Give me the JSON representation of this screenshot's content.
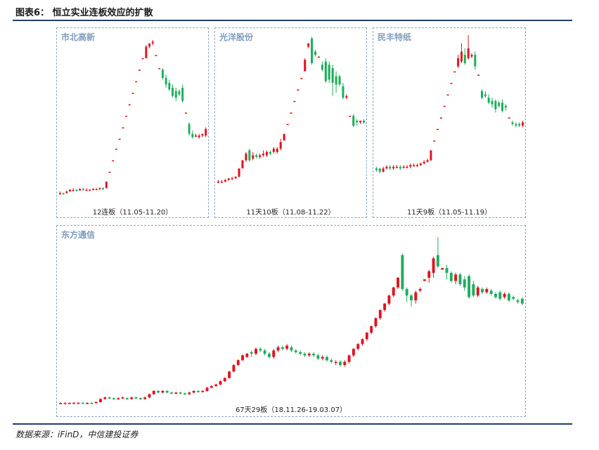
{
  "figure": {
    "title": "图表6： 恒立实业连板效应的扩散",
    "source": "数据来源：iFinD，中信建投证券"
  },
  "colors": {
    "up": "#e0141e",
    "down": "#1bae5b",
    "border": "#8aa6c4",
    "title_blue": "#7f9cbf",
    "rule": "#1f3f6d"
  },
  "chart_data": [
    {
      "type": "candlestick",
      "name": "市北高新",
      "caption": "12连板（11.05-11.20）",
      "ylim": [
        0,
        100
      ],
      "grid": false,
      "candles": [
        [
          4,
          4,
          5,
          3
        ],
        [
          4,
          3.5,
          4.2,
          3
        ],
        [
          4,
          5,
          5.5,
          3.8
        ],
        [
          5,
          6,
          6.5,
          4.8
        ],
        [
          6,
          6,
          7,
          5
        ],
        [
          6,
          5.5,
          6.5,
          5
        ],
        [
          5.5,
          6.5,
          7,
          5.5
        ],
        [
          6.5,
          6,
          7,
          5.5
        ],
        [
          6,
          6,
          7,
          5.5
        ],
        [
          6,
          6,
          6.5,
          5.5
        ],
        [
          6,
          6.5,
          7,
          5.8
        ],
        [
          6.5,
          6.5,
          7,
          6
        ],
        [
          6.5,
          7,
          7.5,
          6
        ],
        [
          7,
          6.5,
          7.5,
          6
        ],
        [
          7,
          11,
          11,
          7
        ],
        [
          17,
          17,
          17,
          17
        ],
        [
          24,
          24,
          24,
          24
        ],
        [
          31,
          31,
          31,
          31
        ],
        [
          37,
          37,
          37,
          37
        ],
        [
          44,
          44,
          44,
          44
        ],
        [
          51,
          51,
          51,
          51
        ],
        [
          58,
          58,
          58,
          58
        ],
        [
          65,
          65,
          65,
          65
        ],
        [
          72,
          72,
          72,
          72
        ],
        [
          79,
          79,
          79,
          79
        ],
        [
          86,
          86,
          86,
          86
        ],
        [
          86,
          93,
          94,
          86
        ],
        [
          93,
          95,
          95,
          92
        ],
        [
          95,
          96,
          97,
          94
        ],
        [
          88,
          88,
          88,
          88
        ],
        [
          80,
          80,
          80,
          80
        ],
        [
          79,
          74,
          80,
          73
        ],
        [
          74,
          70,
          76,
          68
        ],
        [
          71,
          67,
          73,
          66
        ],
        [
          68,
          63,
          70,
          62
        ],
        [
          66,
          62,
          68,
          60
        ],
        [
          66,
          64,
          67,
          63
        ],
        [
          68,
          60,
          70,
          59
        ],
        [
          53,
          53,
          53,
          53
        ],
        [
          46,
          40,
          47,
          39
        ],
        [
          40,
          38,
          42,
          37
        ],
        [
          39,
          39,
          40,
          38
        ],
        [
          38,
          39,
          40,
          37
        ],
        [
          39,
          40,
          40,
          38
        ],
        [
          39,
          43,
          44,
          38
        ]
      ]
    },
    {
      "type": "candlestick",
      "name": "光洋股份",
      "caption": "11天10板（11.08-11.22）",
      "ylim": [
        0,
        100
      ],
      "grid": false,
      "candles": [
        [
          11,
          11,
          12,
          10
        ],
        [
          11,
          11,
          12,
          10
        ],
        [
          11,
          12,
          12.5,
          10.5
        ],
        [
          12,
          13,
          13,
          11.5
        ],
        [
          13,
          13,
          14,
          12
        ],
        [
          13,
          14,
          14,
          12.5
        ],
        [
          14,
          19,
          19,
          13.5
        ],
        [
          19,
          24,
          24,
          19
        ],
        [
          24,
          28,
          29,
          23
        ],
        [
          30,
          24,
          31,
          23
        ],
        [
          25,
          27,
          29,
          24
        ],
        [
          27,
          26,
          28,
          25
        ],
        [
          26,
          27,
          28,
          25
        ],
        [
          27,
          28,
          30,
          26
        ],
        [
          27,
          29,
          30,
          26
        ],
        [
          29,
          28,
          30,
          27
        ],
        [
          29,
          31,
          32,
          28
        ],
        [
          29,
          31,
          32,
          28
        ],
        [
          31,
          35,
          37,
          30
        ],
        [
          36,
          40,
          40,
          36
        ],
        [
          46,
          46,
          46,
          46
        ],
        [
          53,
          53,
          53,
          53
        ],
        [
          60,
          60,
          60,
          60
        ],
        [
          67,
          67,
          67,
          67
        ],
        [
          74,
          74,
          74,
          74
        ],
        [
          78,
          85,
          86,
          78
        ],
        [
          93,
          95,
          95,
          92
        ],
        [
          98,
          83,
          99,
          82
        ],
        [
          90,
          88,
          91,
          87
        ],
        [
          87,
          87,
          87,
          87
        ],
        [
          82,
          79,
          84,
          78
        ],
        [
          84,
          72,
          86,
          71
        ],
        [
          82,
          73,
          84,
          71
        ],
        [
          80,
          71,
          82,
          63
        ],
        [
          75,
          70,
          78,
          65
        ],
        [
          75,
          70,
          76,
          69
        ],
        [
          69,
          62,
          71,
          61
        ],
        [
          62,
          63,
          64,
          61
        ],
        [
          51,
          51,
          51,
          51
        ],
        [
          51,
          45,
          52,
          44
        ],
        [
          48,
          47,
          49,
          45
        ],
        [
          47,
          48,
          48,
          46
        ],
        [
          48,
          47,
          49,
          46
        ]
      ]
    },
    {
      "type": "candlestick",
      "name": "民丰特纸",
      "caption": "11天9板（11.05-11.19）",
      "ylim": [
        0,
        100
      ],
      "grid": false,
      "candles": [
        [
          19,
          18,
          20,
          17
        ],
        [
          19,
          17,
          19,
          16
        ],
        [
          17,
          19,
          20,
          16.5
        ],
        [
          19,
          20,
          21,
          18.5
        ],
        [
          20,
          19,
          21,
          18
        ],
        [
          19,
          20,
          21,
          18
        ],
        [
          20,
          20,
          21,
          19
        ],
        [
          20,
          19,
          21,
          18
        ],
        [
          20,
          20,
          21,
          19
        ],
        [
          20,
          20,
          21,
          19
        ],
        [
          20,
          21,
          22,
          19
        ],
        [
          21,
          21,
          22,
          20
        ],
        [
          21,
          21,
          22,
          20
        ],
        [
          21,
          22,
          22.5,
          20.5
        ],
        [
          22,
          23,
          24,
          21.5
        ],
        [
          23,
          24,
          25,
          22.5
        ],
        [
          24,
          30,
          30,
          23.5
        ],
        [
          36,
          36,
          36,
          36
        ],
        [
          43,
          43,
          43,
          43
        ],
        [
          50,
          50,
          50,
          50
        ],
        [
          57,
          57,
          57,
          57
        ],
        [
          64,
          64,
          64,
          64
        ],
        [
          71,
          71,
          71,
          71
        ],
        [
          78,
          78,
          78,
          78
        ],
        [
          81,
          86,
          88,
          80
        ],
        [
          84,
          90,
          95,
          83
        ],
        [
          88,
          83,
          92,
          82
        ],
        [
          86,
          92,
          100,
          85
        ],
        [
          87,
          88,
          89,
          86
        ],
        [
          88,
          81,
          90,
          79
        ],
        [
          76,
          76,
          76,
          76
        ],
        [
          66,
          62,
          67,
          61
        ],
        [
          64,
          63,
          66,
          62
        ],
        [
          62,
          59,
          64,
          58
        ],
        [
          60,
          58,
          62,
          56
        ],
        [
          60,
          55,
          61,
          53
        ],
        [
          59,
          57,
          60,
          56
        ],
        [
          59,
          54,
          61,
          53
        ],
        [
          57,
          56,
          58,
          54
        ],
        [
          50,
          50,
          50,
          50
        ],
        [
          47,
          46,
          48,
          45
        ],
        [
          46,
          45,
          47,
          44
        ],
        [
          46,
          45,
          47,
          44
        ],
        [
          45,
          47,
          48,
          44
        ]
      ]
    },
    {
      "type": "candlestick",
      "name": "东方通信",
      "caption": "67天29板（18.11.26-19.03.07）",
      "ylim": [
        0,
        100
      ],
      "grid": false,
      "candles": [
        [
          2.5,
          2.5,
          3,
          2
        ],
        [
          2.5,
          2.5,
          3,
          2
        ],
        [
          2.5,
          2.6,
          3,
          2
        ],
        [
          2.6,
          2.7,
          3,
          2.3
        ],
        [
          2.7,
          2.7,
          3,
          2.3
        ],
        [
          2.7,
          2.6,
          3,
          2.2
        ],
        [
          2.6,
          2.6,
          3,
          2.2
        ],
        [
          2.6,
          2.4,
          3,
          2
        ],
        [
          2.4,
          3.2,
          3.5,
          2.3
        ],
        [
          3,
          5,
          5.5,
          3
        ],
        [
          5,
          6,
          6.5,
          4.5
        ],
        [
          6,
          5.5,
          6.5,
          5
        ],
        [
          5.5,
          5,
          6,
          4.5
        ],
        [
          5,
          5.5,
          6,
          4.5
        ],
        [
          5.5,
          6,
          6.5,
          5
        ],
        [
          5.5,
          5,
          6,
          4.5
        ],
        [
          5,
          6,
          6.5,
          4.5
        ],
        [
          6,
          5.5,
          6.5,
          5
        ],
        [
          5.5,
          5,
          6,
          4.5
        ],
        [
          5,
          6,
          6.5,
          4.5
        ],
        [
          6,
          8,
          8.5,
          5.5
        ],
        [
          8,
          10,
          10.5,
          7.5
        ],
        [
          10,
          9,
          10.5,
          8.5
        ],
        [
          9,
          10,
          10.5,
          8.5
        ],
        [
          10,
          9,
          10.5,
          8.5
        ],
        [
          9,
          8.5,
          9.5,
          8
        ],
        [
          8.5,
          9,
          9.5,
          8
        ],
        [
          9,
          8.5,
          9.5,
          8
        ],
        [
          8.5,
          8,
          9,
          7.5
        ],
        [
          8,
          9,
          9.5,
          7.5
        ],
        [
          9,
          10,
          10.5,
          8.5
        ],
        [
          10,
          9.5,
          10.5,
          9
        ],
        [
          9.5,
          10,
          10.5,
          9
        ],
        [
          10,
          12,
          12.5,
          9.5
        ],
        [
          12,
          13,
          13.5,
          11.5
        ],
        [
          13,
          14,
          14.5,
          12.5
        ],
        [
          14,
          16,
          16.5,
          13.5
        ],
        [
          16,
          18,
          18.5,
          15.5
        ],
        [
          18,
          22,
          22.5,
          17.5
        ],
        [
          22,
          26,
          26.5,
          21.5
        ],
        [
          26,
          29,
          29.5,
          25.5
        ],
        [
          29,
          32,
          32.5,
          28.5
        ],
        [
          31,
          33,
          33.5,
          30.5
        ],
        [
          34,
          33,
          35,
          31
        ],
        [
          33,
          36,
          37,
          32
        ],
        [
          36,
          35,
          37,
          34
        ],
        [
          35,
          33,
          36,
          32
        ],
        [
          33,
          31,
          34,
          30
        ],
        [
          31,
          35,
          36,
          30
        ],
        [
          35,
          37,
          38,
          34
        ],
        [
          37,
          36,
          38,
          35
        ],
        [
          36,
          38,
          39,
          35
        ],
        [
          37,
          35,
          38,
          34
        ],
        [
          35,
          34,
          36,
          33
        ],
        [
          34,
          33,
          35,
          32
        ],
        [
          33,
          32,
          34,
          31
        ],
        [
          32,
          33,
          34,
          31
        ],
        [
          33,
          32,
          34,
          31
        ],
        [
          32,
          30,
          33,
          29
        ],
        [
          30,
          31,
          32,
          29
        ],
        [
          31,
          29,
          32,
          28
        ],
        [
          29,
          28,
          30,
          27
        ],
        [
          28,
          28,
          29,
          26
        ],
        [
          28,
          26,
          29,
          25
        ],
        [
          26,
          28,
          29,
          25
        ],
        [
          28,
          32,
          32.5,
          27
        ],
        [
          32,
          36,
          36.5,
          31
        ],
        [
          36,
          39,
          39.5,
          35
        ],
        [
          39,
          42,
          42.5,
          38
        ],
        [
          42,
          46,
          46.5,
          41
        ],
        [
          46,
          50,
          50.5,
          45
        ],
        [
          50,
          55,
          55.5,
          49
        ],
        [
          55,
          60,
          60.5,
          54
        ],
        [
          60,
          64,
          64.5,
          59
        ],
        [
          64,
          69,
          69.5,
          63
        ],
        [
          69,
          74,
          74.5,
          68
        ],
        [
          74,
          80,
          80.5,
          73
        ],
        [
          94,
          73,
          95,
          72
        ],
        [
          73,
          69,
          74,
          65
        ],
        [
          69,
          66,
          70,
          62
        ],
        [
          66,
          71,
          72,
          64
        ],
        [
          72,
          73,
          74,
          71
        ],
        [
          78,
          79,
          79,
          78
        ],
        [
          80,
          84,
          85,
          77
        ],
        [
          83,
          92,
          93,
          80
        ],
        [
          94,
          87,
          105,
          86
        ],
        [
          85,
          86,
          86,
          85
        ],
        [
          86,
          83,
          88,
          79
        ],
        [
          83,
          78,
          84,
          77
        ],
        [
          78,
          82,
          83,
          76
        ],
        [
          82,
          76,
          83,
          75
        ],
        [
          79,
          74,
          81,
          72
        ],
        [
          81,
          68,
          82,
          67
        ],
        [
          76,
          69,
          78,
          68
        ],
        [
          69,
          74,
          75,
          68
        ],
        [
          73,
          71,
          74,
          70
        ],
        [
          71,
          73,
          74,
          70
        ],
        [
          72,
          70,
          73,
          69
        ],
        [
          70,
          68,
          71,
          67
        ],
        [
          71,
          67,
          72,
          66
        ],
        [
          68,
          70,
          71,
          67
        ],
        [
          70,
          66,
          71,
          65
        ],
        [
          68,
          67,
          69,
          66
        ],
        [
          66,
          65,
          67,
          64
        ],
        [
          67,
          64,
          68,
          63
        ]
      ]
    }
  ]
}
